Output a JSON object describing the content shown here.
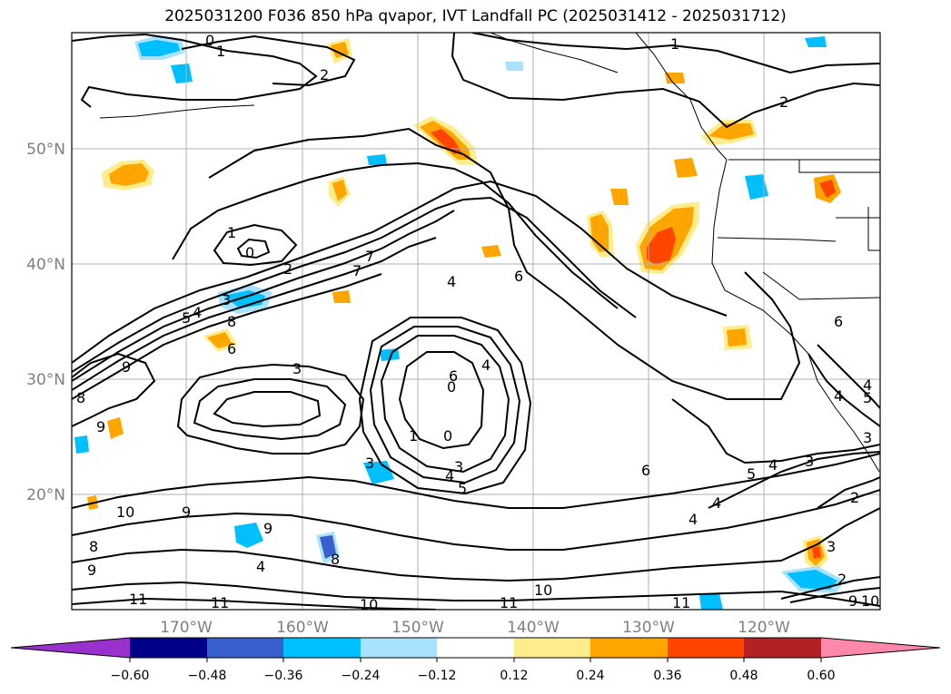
{
  "figure": {
    "title": "2025031200 F036 850 hPa qvapor, IVT Landfall PC (2025031412 - 2025031712)"
  },
  "map": {
    "lat_labels": [
      "50°N",
      "40°N",
      "30°N",
      "20°N"
    ],
    "lon_labels": [
      "170°W",
      "160°W",
      "150°W",
      "140°W",
      "130°W",
      "120°W"
    ],
    "contour_labels": [
      "0",
      "1",
      "1",
      "2",
      "2",
      "1",
      "0",
      "2",
      "7",
      "5",
      "4",
      "3",
      "6",
      "8",
      "6",
      "9",
      "8",
      "9",
      "3",
      "4",
      "6",
      "4",
      "3",
      "0",
      "1",
      "0",
      "4",
      "5",
      "3",
      "6",
      "5",
      "4",
      "3",
      "2",
      "6",
      "4",
      "10",
      "9",
      "9",
      "8",
      "9",
      "11",
      "11",
      "10",
      "11",
      "10",
      "11",
      "9",
      "10",
      "4",
      "3",
      "2",
      "4",
      "4",
      "7",
      "8",
      "5",
      "3",
      "4"
    ],
    "colors": {
      "positive": [
        "#ffec8b",
        "#ffa500",
        "#ff4500",
        "#b22222",
        "#ff88aa"
      ],
      "negative": [
        "#a8e2ff",
        "#00bfff",
        "#3a5fcd",
        "#00008b",
        "#9932cc"
      ],
      "contour": "#000000",
      "grid": "#b0b0b0",
      "axis_labels": "#7f7f7f"
    }
  },
  "colorbar": {
    "ticks": [
      "−0.60",
      "−0.48",
      "−0.36",
      "−0.24",
      "−0.12",
      "0.12",
      "0.24",
      "0.36",
      "0.48",
      "0.60"
    ],
    "colors": [
      "#9932cc",
      "#00008b",
      "#3a5fcd",
      "#00bfff",
      "#a8e2ff",
      "#ffffff",
      "#ffec8b",
      "#ffa500",
      "#ff4500",
      "#b22222",
      "#ff88aa"
    ]
  }
}
